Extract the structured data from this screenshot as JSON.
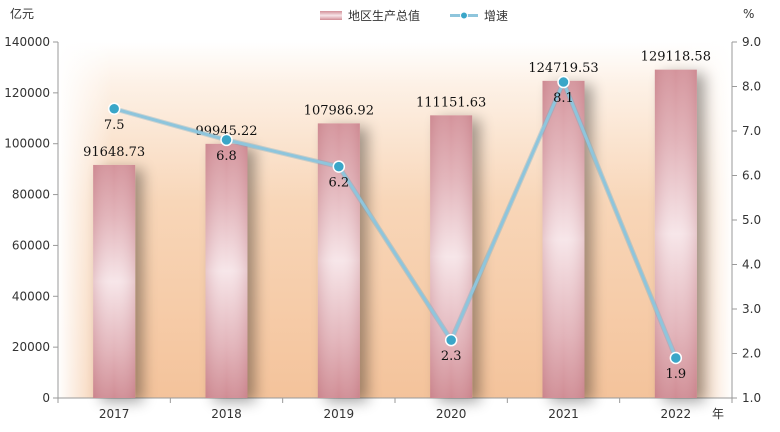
{
  "chart_data": {
    "type": "bar+line",
    "categories": [
      "2017",
      "2018",
      "2019",
      "2020",
      "2021",
      "2022"
    ],
    "series": [
      {
        "name": "地区生产总值",
        "type": "bar",
        "axis": "left",
        "values": [
          91648.73,
          99945.22,
          107986.92,
          111151.63,
          124719.53,
          129118.58
        ],
        "labels": [
          "91648.73",
          "99945.22",
          "107986.92",
          "111151.63",
          "124719.53",
          "129118.58"
        ]
      },
      {
        "name": "增速",
        "type": "line",
        "axis": "right",
        "values": [
          7.5,
          6.8,
          6.2,
          2.3,
          8.1,
          1.9
        ],
        "labels": [
          "7.5",
          "6.8",
          "6.2",
          "2.3",
          "8.1",
          "1.9"
        ]
      }
    ],
    "left_axis": {
      "unit": "亿元",
      "ylim": [
        0,
        140000
      ],
      "ticks": [
        0,
        20000,
        40000,
        60000,
        80000,
        100000,
        120000,
        140000
      ],
      "tick_labels": [
        "0",
        "20000",
        "40000",
        "60000",
        "80000",
        "100000",
        "120000",
        "140000"
      ]
    },
    "right_axis": {
      "unit": "%",
      "ylim": [
        1.0,
        9.0
      ],
      "ticks": [
        1.0,
        2.0,
        3.0,
        4.0,
        5.0,
        6.0,
        7.0,
        8.0,
        9.0
      ],
      "tick_labels": [
        "1.0",
        "2.0",
        "3.0",
        "4.0",
        "5.0",
        "6.0",
        "7.0",
        "8.0",
        "9.0"
      ]
    },
    "x_unit": "年",
    "legend": {
      "placement": "top-center",
      "entries": [
        "地区生产总值",
        "增速"
      ]
    },
    "colors": {
      "bar_edge": "#d08c94",
      "bar_center": "#f6e4e7",
      "line": "#8ec5dc",
      "marker": "#3aa6c8",
      "bg_warm": "#f6c9a1"
    }
  }
}
